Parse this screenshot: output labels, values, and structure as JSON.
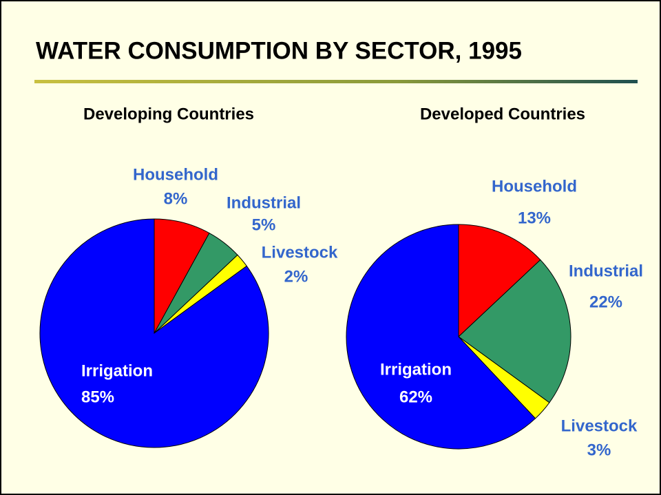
{
  "title": "WATER CONSUMPTION BY SECTOR, 1995",
  "chart_data": [
    {
      "type": "pie",
      "title": "Developing Countries",
      "categories": [
        "Household",
        "Industrial",
        "Livestock",
        "Irrigation"
      ],
      "values": [
        8,
        5,
        2,
        85
      ],
      "value_labels": [
        "8%",
        "5%",
        "2%",
        "85%"
      ],
      "colors": [
        "#ff0000",
        "#339966",
        "#ffff00",
        "#0000ff"
      ]
    },
    {
      "type": "pie",
      "title": "Developed Countries",
      "categories": [
        "Household",
        "Industrial",
        "Livestock",
        "Irrigation"
      ],
      "values": [
        13,
        22,
        3,
        62
      ],
      "value_labels": [
        "13%",
        "22%",
        "3%",
        "62%"
      ],
      "colors": [
        "#ff0000",
        "#339966",
        "#ffff00",
        "#0000ff"
      ]
    }
  ]
}
